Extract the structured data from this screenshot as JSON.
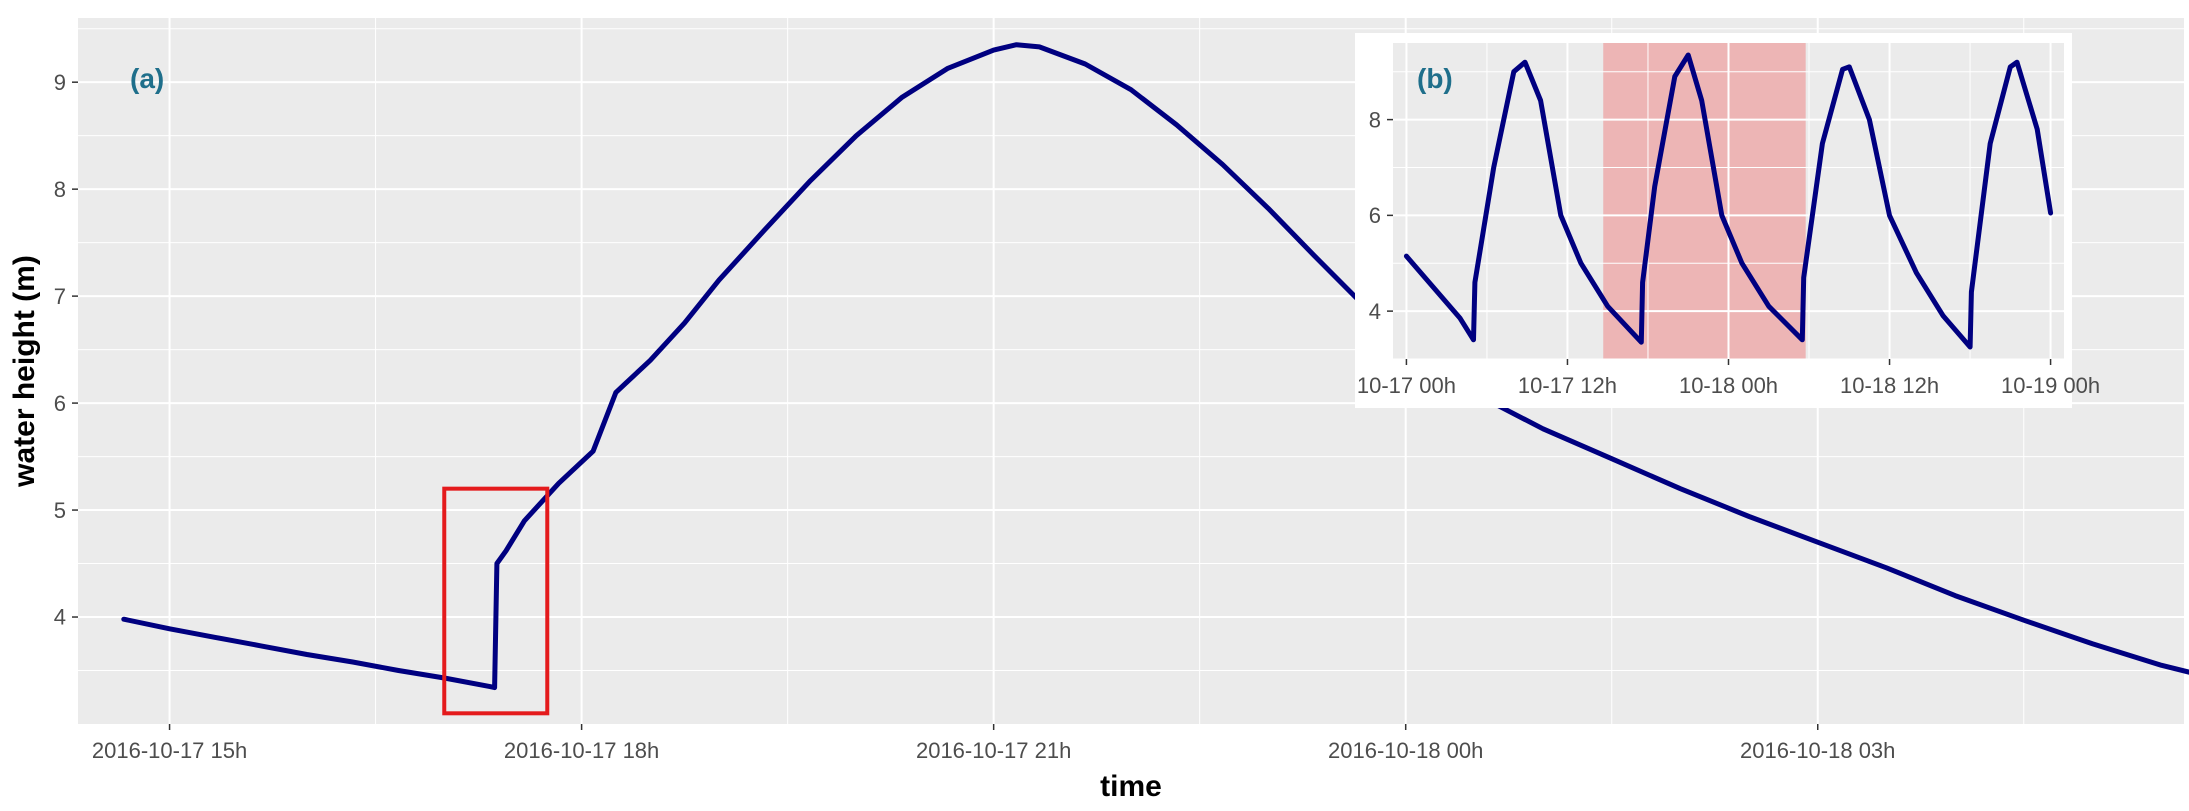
{
  "chart_data": [
    {
      "id": "main",
      "type": "line",
      "panel_label": "(a)",
      "xlabel": "time",
      "ylabel": "water height (m)",
      "x_ticks": [
        "2016-10-17 15h",
        "2016-10-17 18h",
        "2016-10-17 21h",
        "2016-10-18 00h",
        "2016-10-18 03h"
      ],
      "y_ticks": [
        4,
        5,
        6,
        7,
        8,
        9
      ],
      "xlim": [
        "2016-10-17 14:20",
        "2016-10-18 05:40"
      ],
      "ylim": [
        3.0,
        9.6
      ],
      "grid": true,
      "legend": "none",
      "line_color": "#000080",
      "highlight_box_color": "#e41a1c",
      "highlight_box": {
        "x": [
          "2016-10-17 17:00",
          "2016-10-17 17:45"
        ],
        "y": [
          3.1,
          5.2
        ]
      },
      "series": [
        {
          "points": [
            [
              "2016-10-17 14:40",
              3.98
            ],
            [
              "2016-10-17 15:00",
              3.89
            ],
            [
              "2016-10-17 15:20",
              3.81
            ],
            [
              "2016-10-17 15:40",
              3.73
            ],
            [
              "2016-10-17 16:00",
              3.65
            ],
            [
              "2016-10-17 16:20",
              3.58
            ],
            [
              "2016-10-17 16:40",
              3.5
            ],
            [
              "2016-10-17 17:00",
              3.43
            ],
            [
              "2016-10-17 17:20",
              3.35
            ],
            [
              "2016-10-17 17:22",
              3.34
            ],
            [
              "2016-10-17 17:23",
              4.5
            ],
            [
              "2016-10-17 17:27",
              4.62
            ],
            [
              "2016-10-17 17:35",
              4.9
            ],
            [
              "2016-10-17 17:50",
              5.25
            ],
            [
              "2016-10-17 18:05",
              5.55
            ],
            [
              "2016-10-17 18:15",
              6.1
            ],
            [
              "2016-10-17 18:30",
              6.4
            ],
            [
              "2016-10-17 18:45",
              6.75
            ],
            [
              "2016-10-17 19:00",
              7.15
            ],
            [
              "2016-10-17 19:20",
              7.62
            ],
            [
              "2016-10-17 19:40",
              8.08
            ],
            [
              "2016-10-17 20:00",
              8.5
            ],
            [
              "2016-10-17 20:20",
              8.86
            ],
            [
              "2016-10-17 20:40",
              9.13
            ],
            [
              "2016-10-17 21:00",
              9.3
            ],
            [
              "2016-10-17 21:10",
              9.35
            ],
            [
              "2016-10-17 21:20",
              9.33
            ],
            [
              "2016-10-17 21:40",
              9.17
            ],
            [
              "2016-10-17 22:00",
              8.93
            ],
            [
              "2016-10-17 22:20",
              8.6
            ],
            [
              "2016-10-17 22:40",
              8.23
            ],
            [
              "2016-10-17 23:00",
              7.82
            ],
            [
              "2016-10-17 23:20",
              7.38
            ],
            [
              "2016-10-17 23:40",
              6.95
            ],
            [
              "2016-10-18 00:00",
              6.55
            ],
            [
              "2016-10-18 00:20",
              6.22
            ],
            [
              "2016-10-18 00:40",
              5.98
            ],
            [
              "2016-10-18 01:00",
              5.76
            ],
            [
              "2016-10-18 01:30",
              5.48
            ],
            [
              "2016-10-18 02:00",
              5.2
            ],
            [
              "2016-10-18 02:30",
              4.94
            ],
            [
              "2016-10-18 03:00",
              4.7
            ],
            [
              "2016-10-18 03:30",
              4.46
            ],
            [
              "2016-10-18 04:00",
              4.2
            ],
            [
              "2016-10-18 04:30",
              3.97
            ],
            [
              "2016-10-18 05:00",
              3.75
            ],
            [
              "2016-10-18 05:30",
              3.55
            ],
            [
              "2016-10-18 05:45",
              3.47
            ]
          ]
        }
      ]
    },
    {
      "id": "inset",
      "type": "line",
      "panel_label": "(b)",
      "xlabel": "",
      "ylabel": "",
      "x_ticks": [
        "10-17 00h",
        "10-17 12h",
        "10-18 00h",
        "10-18 12h",
        "10-19 00h"
      ],
      "y_ticks": [
        4,
        6,
        8
      ],
      "xlim": [
        "2016-10-16 23:00",
        "2016-10-19 01:00"
      ],
      "ylim": [
        3.0,
        9.6
      ],
      "grid": true,
      "legend": "none",
      "line_color": "#000080",
      "highlight_region_color": "#f08080",
      "highlight_region": {
        "x": [
          "2016-10-17 14:40",
          "2016-10-18 05:45"
        ]
      },
      "series": [
        {
          "points": [
            [
              "2016-10-17 00:00",
              5.15
            ],
            [
              "2016-10-17 02:00",
              4.5
            ],
            [
              "2016-10-17 04:00",
              3.85
            ],
            [
              "2016-10-17 05:00",
              3.4
            ],
            [
              "2016-10-17 05:06",
              4.6
            ],
            [
              "2016-10-17 06:30",
              7.0
            ],
            [
              "2016-10-17 08:00",
              9.0
            ],
            [
              "2016-10-17 08:50",
              9.2
            ],
            [
              "2016-10-17 10:00",
              8.4
            ],
            [
              "2016-10-17 11:30",
              6.0
            ],
            [
              "2016-10-17 13:00",
              5.0
            ],
            [
              "2016-10-17 15:00",
              4.1
            ],
            [
              "2016-10-17 17:00",
              3.5
            ],
            [
              "2016-10-17 17:30",
              3.35
            ],
            [
              "2016-10-17 17:36",
              4.6
            ],
            [
              "2016-10-17 18:30",
              6.6
            ],
            [
              "2016-10-17 20:00",
              8.9
            ],
            [
              "2016-10-17 21:00",
              9.35
            ],
            [
              "2016-10-17 22:00",
              8.4
            ],
            [
              "2016-10-17 23:30",
              6.0
            ],
            [
              "2016-10-18 01:00",
              5.0
            ],
            [
              "2016-10-18 03:00",
              4.1
            ],
            [
              "2016-10-18 05:30",
              3.4
            ],
            [
              "2016-10-18 05:36",
              4.7
            ],
            [
              "2016-10-18 07:00",
              7.5
            ],
            [
              "2016-10-18 08:30",
              9.05
            ],
            [
              "2016-10-18 09:00",
              9.1
            ],
            [
              "2016-10-18 10:30",
              8.0
            ],
            [
              "2016-10-18 12:00",
              6.0
            ],
            [
              "2016-10-18 14:00",
              4.8
            ],
            [
              "2016-10-18 16:00",
              3.9
            ],
            [
              "2016-10-18 18:00",
              3.25
            ],
            [
              "2016-10-18 18:06",
              4.4
            ],
            [
              "2016-10-18 19:30",
              7.5
            ],
            [
              "2016-10-18 21:00",
              9.1
            ],
            [
              "2016-10-18 21:30",
              9.2
            ],
            [
              "2016-10-18 23:00",
              7.8
            ],
            [
              "2016-10-19 00:00",
              6.05
            ]
          ]
        }
      ]
    }
  ]
}
